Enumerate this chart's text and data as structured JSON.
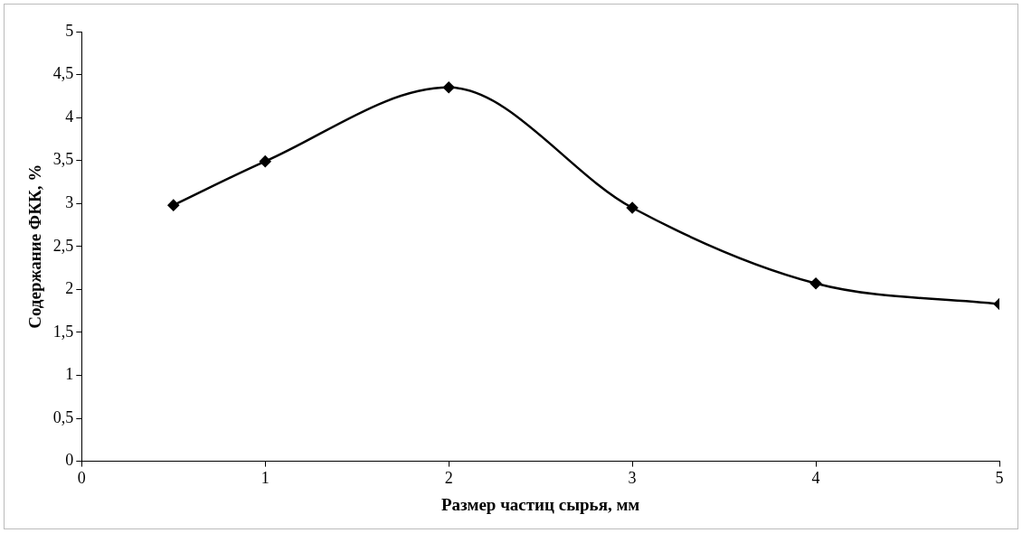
{
  "chart_data": {
    "type": "line",
    "xlabel": "Размер частиц сырья, мм",
    "ylabel": "Содержание ФКК, %",
    "x": [
      0.5,
      1,
      2,
      3,
      4,
      5
    ],
    "series": [
      {
        "color": "#000000",
        "values": [
          2.98,
          3.49,
          4.35,
          2.95,
          2.07,
          1.83
        ]
      }
    ],
    "xlim": [
      0,
      5
    ],
    "xticks": [
      0,
      1,
      2,
      3,
      4,
      5
    ],
    "ylim": [
      0,
      5
    ],
    "yticks": [
      0,
      {
        "value": 0.5,
        "label": "0,5"
      },
      1,
      {
        "value": 1.5,
        "label": "1,5"
      },
      2,
      {
        "value": 2.5,
        "label": "2,5"
      },
      3,
      {
        "value": 3.5,
        "label": "3,5"
      },
      4,
      {
        "value": 4.5,
        "label": "4,5"
      },
      5
    ],
    "grid": false,
    "legend": false,
    "marker": "diamond",
    "line_style": "solid"
  }
}
